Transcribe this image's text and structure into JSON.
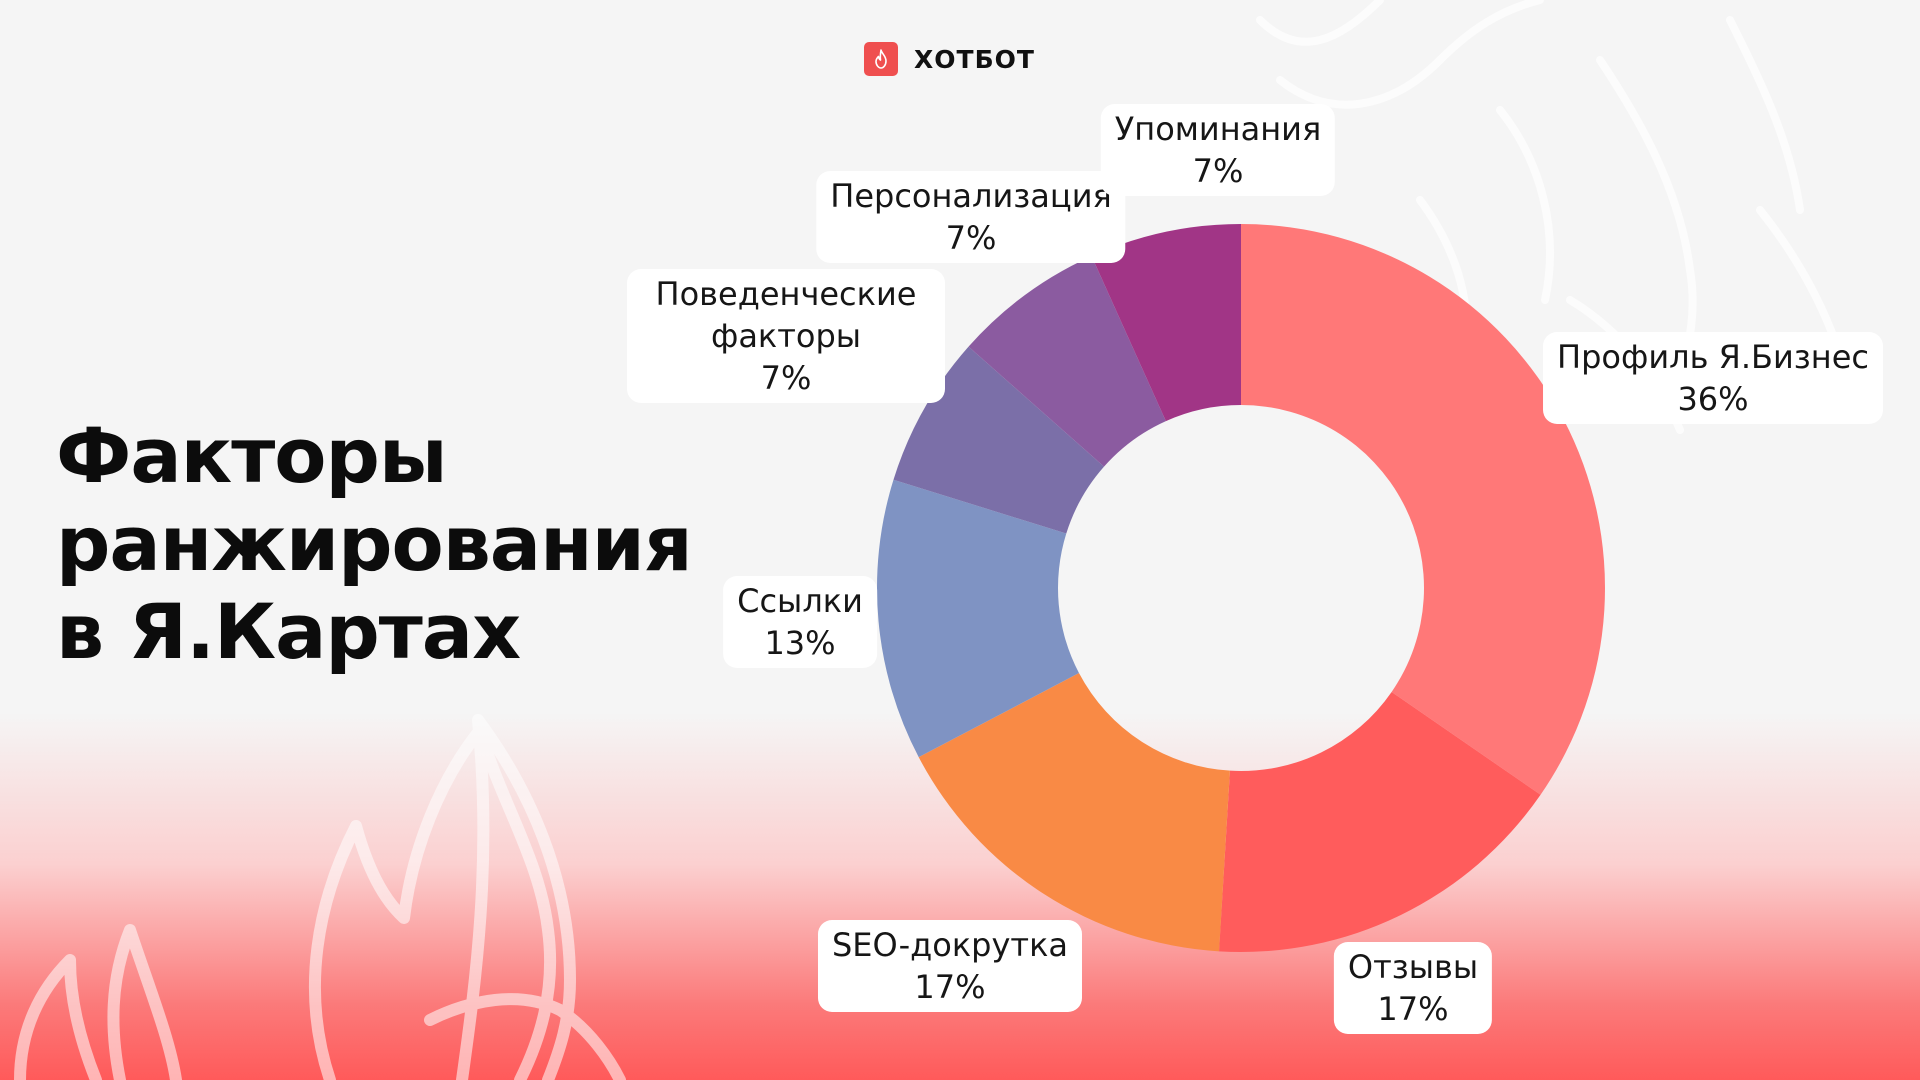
{
  "brand": {
    "name": "ХОТБОТ",
    "icon": "flame-icon",
    "color": "#ef4f4f"
  },
  "title": {
    "lines": [
      "Факторы",
      "ранжирования",
      "в Я.Картах"
    ]
  },
  "chart_data": {
    "type": "pie",
    "donut": true,
    "categories": [
      "Профиль Я.Бизнес",
      "Отзывы",
      "SEO-докрутка",
      "Ссылки",
      "Поведенческие факторы",
      "Персонализация",
      "Упоминания"
    ],
    "values": [
      36,
      17,
      17,
      13,
      7,
      7,
      7
    ],
    "value_labels": [
      "36%",
      "17%",
      "17%",
      "13%",
      "7%",
      "7%",
      "7%"
    ],
    "colors": [
      "#ff7878",
      "#ff5c5c",
      "#f98a45",
      "#7f93c3",
      "#7b6fa8",
      "#8b5ba0",
      "#a13586"
    ],
    "legend": "none"
  }
}
